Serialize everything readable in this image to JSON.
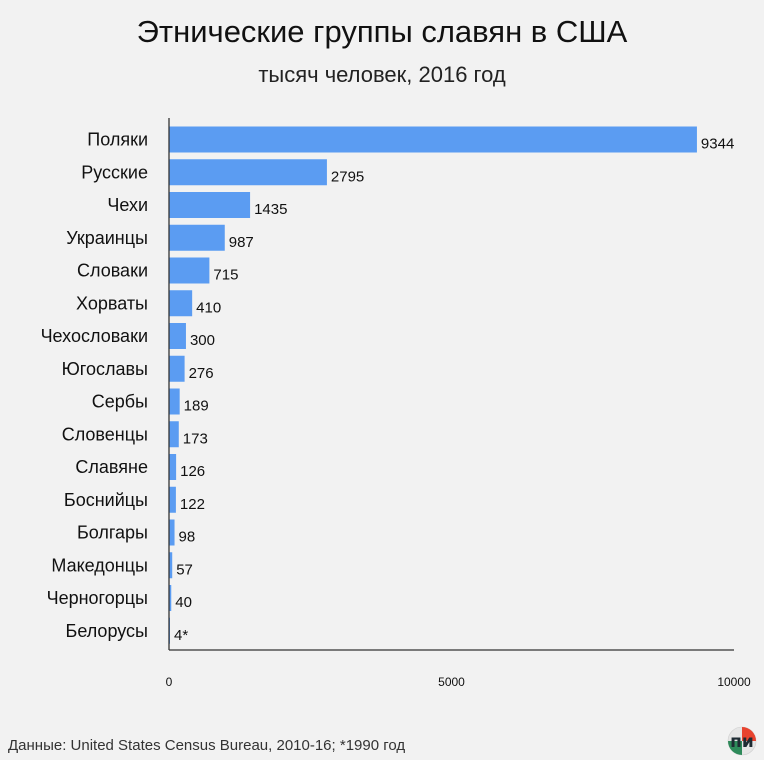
{
  "chart_data": {
    "type": "bar",
    "orientation": "horizontal",
    "title": "Этнические группы славян в США",
    "subtitle": "тысяч человек, 2016 год",
    "categories": [
      "Поляки",
      "Русские",
      "Чехи",
      "Украинцы",
      "Словаки",
      "Хорваты",
      "Чехословаки",
      "Югославы",
      "Сербы",
      "Словенцы",
      "Славяне",
      "Боснийцы",
      "Болгары",
      "Македонцы",
      "Черногорцы",
      "Белорусы"
    ],
    "values": [
      9344,
      2795,
      1435,
      987,
      715,
      410,
      300,
      276,
      189,
      173,
      126,
      122,
      98,
      57,
      40,
      4
    ],
    "value_labels": [
      "9344",
      "2795",
      "1435",
      "987",
      "715",
      "410",
      "300",
      "276",
      "189",
      "173",
      "126",
      "122",
      "98",
      "57",
      "40",
      "4*"
    ],
    "xlim": [
      0,
      10000
    ],
    "xticks": [
      0,
      5000,
      10000
    ],
    "xtick_labels": [
      "0",
      "5000",
      "10000"
    ],
    "grid": false,
    "bar_color": "#5b9cf2"
  },
  "source": "Данные: United States Census Bureau, 2010-16; *1990 год",
  "logo": {
    "text": "п и",
    "icon": "pi-logo-icon",
    "colors": {
      "red": "#e8432f",
      "green": "#2e8a5a",
      "dark": "#1e2b33"
    }
  }
}
